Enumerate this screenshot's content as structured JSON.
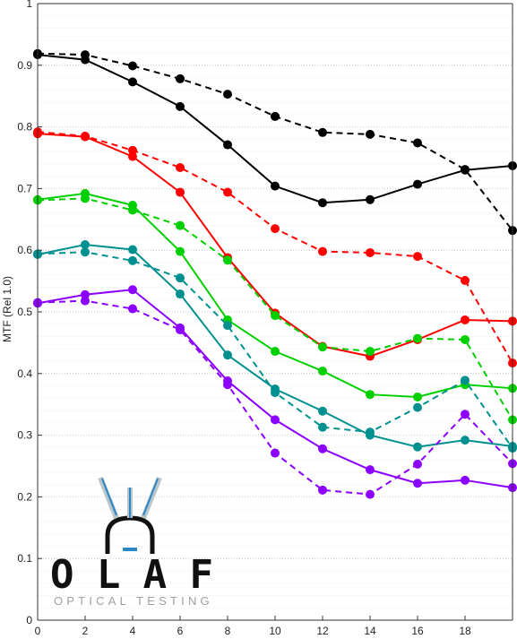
{
  "chart_data": {
    "type": "line",
    "title": "",
    "xlabel": "",
    "ylabel": "MTF (Rel 1.0)",
    "xlim": [
      0,
      20
    ],
    "ylim": [
      0,
      1
    ],
    "x_ticks": [
      "0",
      "2",
      "4",
      "6",
      "8",
      "10",
      "12",
      "14",
      "16",
      "18"
    ],
    "y_ticks": [
      "0",
      "0.1",
      "0.2",
      "0.3",
      "0.4",
      "0.5",
      "0.6",
      "0.7",
      "0.8",
      "0.9",
      "1"
    ],
    "grid": "dotted",
    "x": [
      0,
      2,
      4,
      6,
      8,
      10,
      12,
      14,
      16,
      18,
      20
    ],
    "series": [
      {
        "color": "#000000",
        "style": "solid",
        "values": [
          0.917,
          0.909,
          0.873,
          0.833,
          0.771,
          0.704,
          0.677,
          0.682,
          0.707,
          0.73,
          0.737
        ]
      },
      {
        "color": "#000000",
        "style": "dashed",
        "values": [
          0.919,
          0.917,
          0.899,
          0.878,
          0.853,
          0.817,
          0.791,
          0.788,
          0.774,
          0.731,
          0.632
        ]
      },
      {
        "color": "#ff0000",
        "style": "solid",
        "values": [
          0.789,
          0.784,
          0.752,
          0.694,
          0.588,
          0.498,
          0.444,
          0.428,
          0.455,
          0.487,
          0.485
        ]
      },
      {
        "color": "#ff0000",
        "style": "dashed",
        "values": [
          0.792,
          0.785,
          0.762,
          0.734,
          0.694,
          0.635,
          0.598,
          0.596,
          0.59,
          0.551,
          0.417
        ]
      },
      {
        "color": "#00d000",
        "style": "solid",
        "values": [
          0.682,
          0.692,
          0.673,
          0.598,
          0.487,
          0.436,
          0.404,
          0.366,
          0.362,
          0.382,
          0.376
        ]
      },
      {
        "color": "#00d000",
        "style": "dashed",
        "values": [
          0.681,
          0.684,
          0.665,
          0.64,
          0.584,
          0.494,
          0.443,
          0.436,
          0.457,
          0.455,
          0.325
        ]
      },
      {
        "color": "#009090",
        "style": "solid",
        "values": [
          0.593,
          0.609,
          0.601,
          0.529,
          0.43,
          0.375,
          0.339,
          0.3,
          0.281,
          0.292,
          0.282
        ]
      },
      {
        "color": "#009090",
        "style": "dashed",
        "values": [
          0.594,
          0.597,
          0.583,
          0.555,
          0.478,
          0.369,
          0.313,
          0.305,
          0.345,
          0.389,
          0.279
        ]
      },
      {
        "color": "#8c00ff",
        "style": "solid",
        "values": [
          0.514,
          0.528,
          0.536,
          0.474,
          0.388,
          0.325,
          0.278,
          0.244,
          0.222,
          0.227,
          0.215
        ]
      },
      {
        "color": "#8c00ff",
        "style": "dashed",
        "values": [
          0.515,
          0.518,
          0.505,
          0.471,
          0.382,
          0.271,
          0.211,
          0.204,
          0.253,
          0.334,
          0.254
        ]
      }
    ]
  },
  "logo": {
    "name": "OLAF",
    "tagline": "OPTICAL TESTING"
  }
}
